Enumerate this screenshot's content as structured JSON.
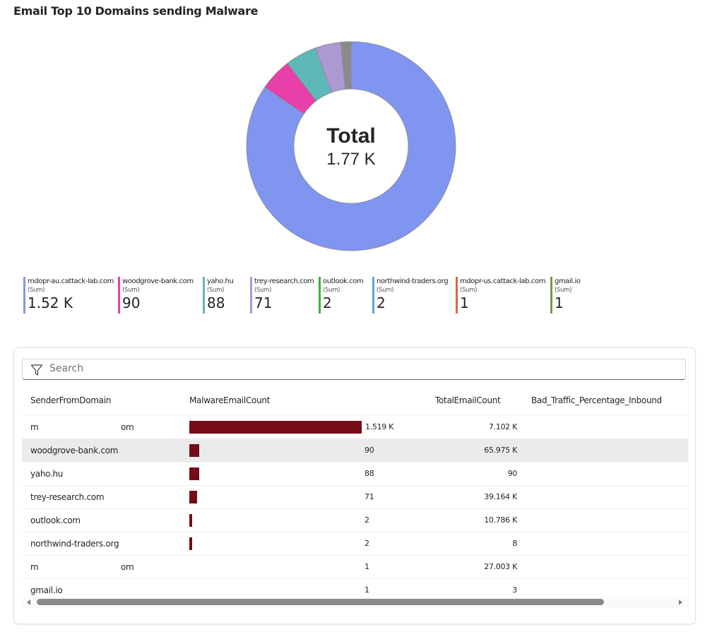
{
  "title": "Email Top 10 Domains sending Malware",
  "chart_data": {
    "type": "pie",
    "variant": "donut",
    "title": "Email Top 10 Domains sending Malware",
    "center_label": "Total",
    "center_value": "1.77 K",
    "aggregation": "(Sum)",
    "slices": [
      {
        "label": "mdopr-au.cattack-lab.com",
        "value": 1519,
        "display": "1.52 K",
        "color": "#8095f0"
      },
      {
        "label": "woodgrove-bank.com",
        "value": 90,
        "display": "90",
        "color": "#e83fa8"
      },
      {
        "label": "yaho.hu",
        "value": 88,
        "display": "88",
        "color": "#5fb8b8"
      },
      {
        "label": "trey-research.com",
        "value": 71,
        "display": "71",
        "color": "#ad98d2"
      },
      {
        "label": "outlook.com",
        "value": 2,
        "display": "2",
        "color": "#3cb043"
      },
      {
        "label": "northwind-traders.org",
        "value": 2,
        "display": "2",
        "color": "#5ba6dc"
      },
      {
        "label": "mdopr-us.cattack-lab.com",
        "value": 1,
        "display": "1",
        "color": "#d86b3a"
      },
      {
        "label": "gmail.io",
        "value": 1,
        "display": "1",
        "color": "#77993e"
      }
    ],
    "legend_position": "bottom"
  },
  "table": {
    "search_placeholder": "Search",
    "columns": [
      "SenderFromDomain",
      "MalwareEmailCount",
      "TotalEmailCount",
      "Bad_Traffic_Percentage_Inbound"
    ],
    "bar_color": "#750c16",
    "max_malware": 1519,
    "rows": [
      {
        "domain": "m",
        "domain_tail": "om",
        "malware": 1519,
        "malware_display": "1.519 K",
        "total": "7.102 K",
        "highlight": false
      },
      {
        "domain": "woodgrove-bank.com",
        "domain_tail": "",
        "malware": 90,
        "malware_display": "90",
        "total": "65.975 K",
        "highlight": true
      },
      {
        "domain": "yaho.hu",
        "domain_tail": "",
        "malware": 88,
        "malware_display": "88",
        "total": "90",
        "highlight": false
      },
      {
        "domain": "trey-research.com",
        "domain_tail": "",
        "malware": 71,
        "malware_display": "71",
        "total": "39.164 K",
        "highlight": false
      },
      {
        "domain": "outlook.com",
        "domain_tail": "",
        "malware": 2,
        "malware_display": "2",
        "total": "10.786 K",
        "highlight": false
      },
      {
        "domain": "northwind-traders.org",
        "domain_tail": "",
        "malware": 2,
        "malware_display": "2",
        "total": "8",
        "highlight": false
      },
      {
        "domain": "m",
        "domain_tail": "om",
        "malware": 1,
        "malware_display": "1",
        "total": "27.003 K",
        "highlight": false
      },
      {
        "domain": "gmail.io",
        "domain_tail": "",
        "malware": 1,
        "malware_display": "1",
        "total": "3",
        "highlight": false
      }
    ]
  }
}
